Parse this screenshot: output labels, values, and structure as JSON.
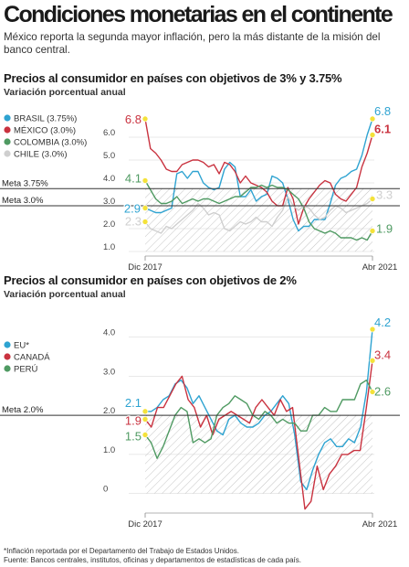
{
  "header": {
    "title": "Condiciones monetarias en el continente",
    "subtitle": "México reporta la segunda mayor inflación, pero la más distante de la misión del banco central."
  },
  "footnotes": {
    "note": "*Inflación reportada por el Departamento del Trabajo de Estados Unidos.",
    "source": "Fuente: Bancos centrales, institutos, oficinas y departamentos de estadísticas de cada país."
  },
  "chart_data": [
    {
      "type": "line",
      "title": "Precios al consumidor en países con objetivos de 3% y 3.75%",
      "subtitle": "Variación porcentual anual",
      "x_labels": [
        "Dic 2017",
        "Abr 2021"
      ],
      "ylim": [
        0.8,
        7.2
      ],
      "y_ticks": [
        1.0,
        2.0,
        3.0,
        4.0,
        5.0,
        6.0
      ],
      "y_tick_labels": [
        "1.0",
        "2.0",
        "3.0",
        "4.0",
        "5.0",
        "6.0"
      ],
      "targets": [
        {
          "label": "Meta 3.75%",
          "value": 3.75
        },
        {
          "label": "Meta 3.0%",
          "value": 3.0
        }
      ],
      "legend": "top-left",
      "series": [
        {
          "name": "BRASIL (3.75%)",
          "color": "#2ea3d1",
          "start_label": "2.9",
          "end_label": "6.8",
          "start": 2.9,
          "end": 6.8,
          "values": [
            2.9,
            2.8,
            2.7,
            2.7,
            2.8,
            2.9,
            4.4,
            4.5,
            4.2,
            4.5,
            4.5,
            4.0,
            3.8,
            3.7,
            3.8,
            4.6,
            4.9,
            4.7,
            3.4,
            3.4,
            3.7,
            3.2,
            3.4,
            3.5,
            4.3,
            4.2,
            4.0,
            3.3,
            2.4,
            1.9,
            2.1,
            2.1,
            2.4,
            2.4,
            2.4,
            3.1,
            3.9,
            4.2,
            4.3,
            4.5,
            4.6,
            5.2,
            6.1,
            6.8
          ]
        },
        {
          "name": "MÉXICO (3.0%)",
          "color": "#c9323f",
          "start_label": "6.8",
          "end_label": "6.1",
          "start": 6.8,
          "end": 6.1,
          "values": [
            6.8,
            5.5,
            5.3,
            5.0,
            4.6,
            4.5,
            4.5,
            4.8,
            4.9,
            5.0,
            5.0,
            4.9,
            4.7,
            4.8,
            4.4,
            4.9,
            4.8,
            4.5,
            4.0,
            4.3,
            4.0,
            3.9,
            3.8,
            3.6,
            3.2,
            3.0,
            3.0,
            3.8,
            3.3,
            2.2,
            2.9,
            3.3,
            3.6,
            3.9,
            4.1,
            4.0,
            3.5,
            3.3,
            3.2,
            3.5,
            3.8,
            4.7,
            5.3,
            6.1
          ]
        },
        {
          "name": "COLOMBIA (3.0%)",
          "color": "#4f9a62",
          "start_label": "4.1",
          "end_label": "1.9",
          "start": 4.1,
          "end": 1.9,
          "values": [
            4.1,
            3.7,
            3.3,
            3.1,
            3.1,
            3.2,
            3.4,
            3.1,
            3.2,
            3.3,
            3.2,
            3.3,
            3.3,
            3.2,
            3.1,
            3.2,
            3.3,
            3.4,
            3.4,
            3.6,
            3.8,
            3.8,
            3.9,
            3.8,
            3.9,
            3.8,
            3.8,
            3.7,
            3.5,
            3.3,
            2.9,
            2.3,
            2.0,
            1.9,
            1.8,
            1.9,
            1.8,
            1.6,
            1.6,
            1.6,
            1.5,
            1.6,
            1.5,
            1.9
          ]
        },
        {
          "name": "CHILE (3.0%)",
          "color": "#cfcfcf",
          "start_label": "2.3",
          "end_label": "3.3",
          "start": 2.3,
          "end": 3.3,
          "values": [
            2.3,
            2.0,
            1.9,
            1.8,
            2.1,
            2.0,
            2.2,
            2.4,
            2.6,
            2.8,
            3.1,
            2.9,
            2.6,
            2.7,
            2.6,
            2.0,
            1.9,
            2.1,
            2.3,
            2.2,
            2.3,
            2.5,
            2.3,
            2.3,
            2.1,
            2.5,
            2.8,
            3.4,
            3.0,
            2.8,
            3.0,
            2.9,
            2.6,
            2.4,
            2.5,
            2.8,
            3.0,
            2.9,
            2.7,
            2.8,
            2.9,
            3.0,
            3.1,
            3.3
          ]
        }
      ]
    },
    {
      "type": "line",
      "title": "Precios al consumidor en países con objetivos de 2%",
      "subtitle": "Variación porcentual anual",
      "x_labels": [
        "Dic 2017",
        "Abr 2021"
      ],
      "ylim": [
        -0.5,
        4.6
      ],
      "y_ticks": [
        0,
        1.0,
        2.0,
        3.0,
        4.0
      ],
      "y_tick_labels": [
        "0",
        "1.0",
        "2.0",
        "3.0",
        "4.0"
      ],
      "targets": [
        {
          "label": "Meta 2.0%",
          "value": 2.0
        }
      ],
      "legend": "top-left",
      "series": [
        {
          "name": "EU*",
          "color": "#2ea3d1",
          "start_label": "2.1",
          "end_label": "4.2",
          "start": 2.1,
          "end": 4.2,
          "values": [
            2.1,
            2.1,
            2.2,
            2.4,
            2.5,
            2.8,
            2.9,
            2.7,
            2.3,
            2.5,
            2.2,
            1.9,
            1.6,
            1.5,
            1.9,
            2.0,
            1.8,
            1.7,
            1.7,
            1.8,
            2.0,
            2.1,
            2.3,
            2.5,
            2.3,
            1.5,
            0.3,
            0.1,
            0.6,
            1.0,
            1.3,
            1.4,
            1.2,
            1.2,
            1.4,
            1.3,
            1.7,
            2.6,
            4.2
          ]
        },
        {
          "name": "CANADÁ",
          "color": "#c9323f",
          "start_label": "1.9",
          "end_label": "3.4",
          "start": 1.9,
          "end": 3.4,
          "values": [
            1.9,
            1.7,
            2.2,
            2.2,
            2.5,
            2.8,
            3.0,
            2.4,
            2.2,
            1.7,
            2.0,
            1.5,
            1.9,
            2.0,
            2.1,
            2.0,
            1.9,
            1.8,
            2.2,
            2.4,
            2.2,
            2.0,
            2.4,
            2.1,
            2.2,
            0.9,
            -0.4,
            -0.2,
            0.7,
            0.1,
            0.5,
            0.7,
            1.0,
            1.0,
            1.1,
            1.1,
            2.2,
            3.4
          ]
        },
        {
          "name": "PERÚ",
          "color": "#4f9a62",
          "start_label": "1.5",
          "end_label": "2.6",
          "start": 1.5,
          "end": 2.6,
          "values": [
            1.5,
            1.3,
            0.9,
            1.2,
            1.6,
            2.0,
            2.2,
            2.1,
            1.3,
            1.4,
            1.3,
            1.4,
            2.0,
            2.2,
            2.3,
            2.5,
            2.4,
            2.3,
            2.0,
            1.9,
            2.1,
            2.0,
            1.8,
            1.9,
            1.8,
            1.8,
            1.6,
            1.6,
            2.0,
            2.0,
            2.2,
            2.1,
            2.1,
            2.4,
            2.4,
            2.4,
            2.8,
            2.9,
            2.6
          ]
        }
      ]
    }
  ]
}
